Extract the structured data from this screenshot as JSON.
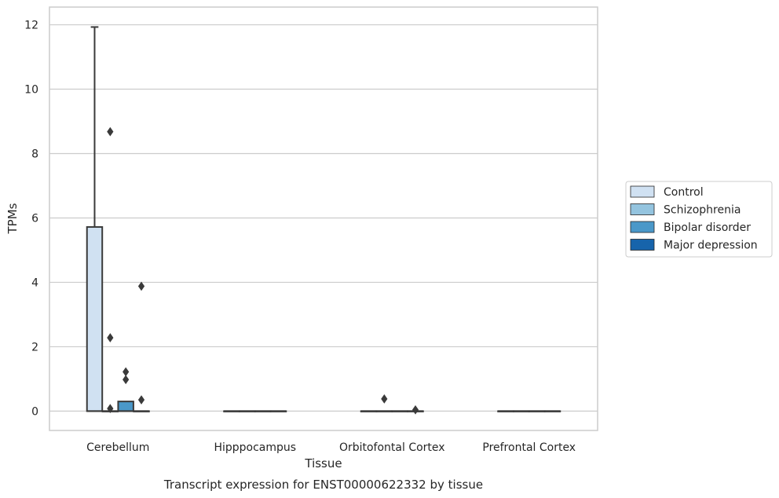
{
  "chart_data": {
    "type": "box",
    "title": "Transcript expression for ENST00000622332 by tissue",
    "xlabel": "Tissue",
    "ylabel": "TPMs",
    "ylim": [
      -0.6,
      12.55
    ],
    "yticks": [
      0,
      2,
      4,
      6,
      8,
      10,
      12
    ],
    "grid": true,
    "legend_position": "right",
    "categories": [
      "Cerebellum",
      "Hipppocampus",
      "Orbitofontal Cortex",
      "Prefrontal Cortex"
    ],
    "series": [
      {
        "name": "Control",
        "color": "#d0e1f2",
        "boxes": [
          {
            "q1": 0,
            "median": 0,
            "q3": 5.72,
            "whisker_low": 0,
            "whisker_high": 11.93,
            "outliers": []
          },
          {
            "q1": 0,
            "median": 0,
            "q3": 0,
            "whisker_low": 0,
            "whisker_high": 0,
            "outliers": []
          },
          {
            "q1": 0,
            "median": 0,
            "q3": 0,
            "whisker_low": 0,
            "whisker_high": 0,
            "outliers": []
          },
          {
            "q1": 0,
            "median": 0,
            "q3": 0,
            "whisker_low": 0,
            "whisker_high": 0,
            "outliers": []
          }
        ]
      },
      {
        "name": "Schizophrenia",
        "color": "#94c4df",
        "boxes": [
          {
            "q1": 0,
            "median": 0,
            "q3": 0,
            "whisker_low": 0,
            "whisker_high": 0,
            "outliers": [
              8.68,
              2.28,
              0.08
            ]
          },
          {
            "q1": 0,
            "median": 0,
            "q3": 0,
            "whisker_low": 0,
            "whisker_high": 0,
            "outliers": []
          },
          {
            "q1": 0,
            "median": 0,
            "q3": 0,
            "whisker_low": 0,
            "whisker_high": 0,
            "outliers": [
              0.38
            ]
          },
          {
            "q1": 0,
            "median": 0,
            "q3": 0,
            "whisker_low": 0,
            "whisker_high": 0,
            "outliers": []
          }
        ]
      },
      {
        "name": "Bipolar disorder",
        "color": "#4a98c9",
        "boxes": [
          {
            "q1": 0,
            "median": 0,
            "q3": 0.3,
            "whisker_low": 0,
            "whisker_high": 0.3,
            "outliers": [
              1.22,
              0.98
            ]
          },
          {
            "q1": 0,
            "median": 0,
            "q3": 0,
            "whisker_low": 0,
            "whisker_high": 0,
            "outliers": []
          },
          {
            "q1": 0,
            "median": 0,
            "q3": 0,
            "whisker_low": 0,
            "whisker_high": 0,
            "outliers": []
          },
          {
            "q1": 0,
            "median": 0,
            "q3": 0,
            "whisker_low": 0,
            "whisker_high": 0,
            "outliers": []
          }
        ]
      },
      {
        "name": "Major depression",
        "color": "#1764ab",
        "boxes": [
          {
            "q1": 0,
            "median": 0,
            "q3": 0,
            "whisker_low": 0,
            "whisker_high": 0,
            "outliers": [
              3.88,
              0.35
            ]
          },
          {
            "q1": 0,
            "median": 0,
            "q3": 0,
            "whisker_low": 0,
            "whisker_high": 0,
            "outliers": []
          },
          {
            "q1": 0,
            "median": 0,
            "q3": 0,
            "whisker_low": 0,
            "whisker_high": 0,
            "outliers": [
              0.04
            ]
          },
          {
            "q1": 0,
            "median": 0,
            "q3": 0,
            "whisker_low": 0,
            "whisker_high": 0,
            "outliers": []
          }
        ]
      }
    ]
  }
}
